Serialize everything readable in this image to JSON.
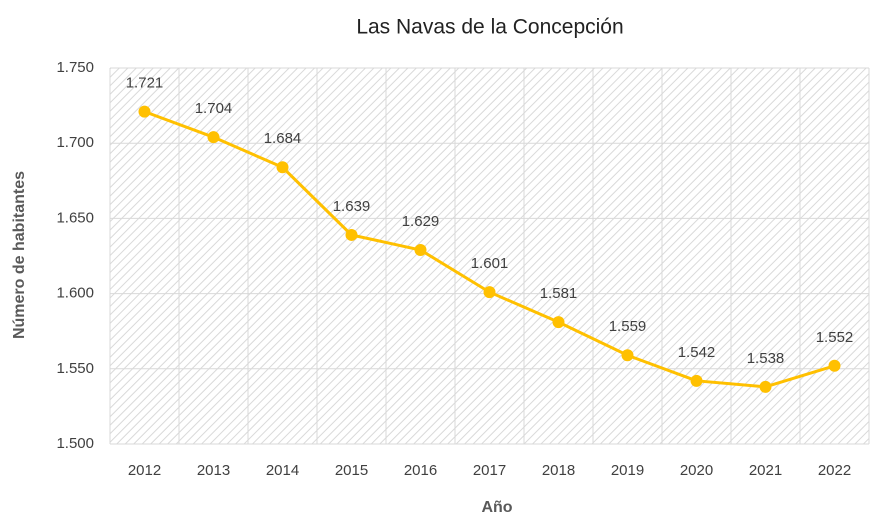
{
  "chart_data": {
    "type": "line",
    "title": "Las Navas de la Concepción",
    "x_label": "Año",
    "y_label": "Número de habitantes",
    "categories": [
      "2012",
      "2013",
      "2014",
      "2015",
      "2016",
      "2017",
      "2018",
      "2019",
      "2020",
      "2021",
      "2022"
    ],
    "series": [
      {
        "name": "Número de habitantes",
        "color": "#ffc000",
        "values": [
          1721,
          1704,
          1684,
          1639,
          1629,
          1601,
          1581,
          1559,
          1542,
          1538,
          1552
        ],
        "value_labels": [
          "1.721",
          "1.704",
          "1.684",
          "1.639",
          "1.629",
          "1.601",
          "1.581",
          "1.559",
          "1.542",
          "1.538",
          "1.552"
        ]
      }
    ],
    "ylim": [
      1500,
      1750
    ],
    "yticks": [
      {
        "value": 1500,
        "label": "1.500"
      },
      {
        "value": 1550,
        "label": "1.550"
      },
      {
        "value": 1600,
        "label": "1.600"
      },
      {
        "value": 1650,
        "label": "1.650"
      },
      {
        "value": 1700,
        "label": "1.700"
      },
      {
        "value": 1750,
        "label": "1.750"
      }
    ],
    "grid": true
  }
}
